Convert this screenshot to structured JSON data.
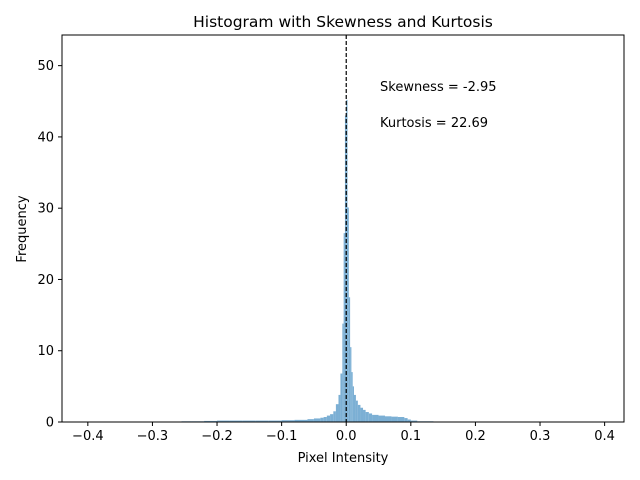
{
  "chart_data": {
    "type": "bar",
    "title": "Histogram with Skewness and Kurtosis",
    "xlabel": "Pixel Intensity",
    "ylabel": "Frequency",
    "xlim": [
      -0.44,
      0.43
    ],
    "ylim": [
      0,
      54.3
    ],
    "xticks": [
      -0.4,
      -0.3,
      -0.2,
      -0.1,
      0.0,
      0.1,
      0.2,
      0.3,
      0.4
    ],
    "xtick_labels": [
      "−0.4",
      "−0.3",
      "−0.2",
      "−0.1",
      "0.0",
      "0.1",
      "0.2",
      "0.3",
      "0.4"
    ],
    "yticks": [
      0,
      10,
      20,
      30,
      40,
      50
    ],
    "ytick_labels": [
      "0",
      "10",
      "20",
      "30",
      "40",
      "50"
    ],
    "grid": false,
    "bar_color": "#7bafd4",
    "bins": [
      [
        -0.255,
        -0.24,
        0.1
      ],
      [
        -0.24,
        -0.22,
        0.1
      ],
      [
        -0.22,
        -0.2,
        0.15
      ],
      [
        -0.2,
        -0.18,
        0.2
      ],
      [
        -0.18,
        -0.16,
        0.2
      ],
      [
        -0.16,
        -0.14,
        0.2
      ],
      [
        -0.14,
        -0.12,
        0.2
      ],
      [
        -0.12,
        -0.1,
        0.2
      ],
      [
        -0.1,
        -0.08,
        0.25
      ],
      [
        -0.08,
        -0.06,
        0.3
      ],
      [
        -0.06,
        -0.05,
        0.4
      ],
      [
        -0.05,
        -0.04,
        0.5
      ],
      [
        -0.04,
        -0.035,
        0.6
      ],
      [
        -0.035,
        -0.03,
        0.7
      ],
      [
        -0.03,
        -0.025,
        0.9
      ],
      [
        -0.025,
        -0.02,
        1.1
      ],
      [
        -0.02,
        -0.016,
        1.5
      ],
      [
        -0.016,
        -0.012,
        2.5
      ],
      [
        -0.012,
        -0.009,
        3.8
      ],
      [
        -0.009,
        -0.006,
        6.8
      ],
      [
        -0.006,
        -0.004,
        13.8
      ],
      [
        -0.004,
        -0.002,
        26.5
      ],
      [
        -0.002,
        0.0,
        43.0
      ],
      [
        0.0,
        0.002,
        45.2
      ],
      [
        0.002,
        0.004,
        30.1
      ],
      [
        0.004,
        0.006,
        17.5
      ],
      [
        0.006,
        0.008,
        10.5
      ],
      [
        0.008,
        0.01,
        7.0
      ],
      [
        0.01,
        0.012,
        5.0
      ],
      [
        0.012,
        0.015,
        3.8
      ],
      [
        0.015,
        0.018,
        3.0
      ],
      [
        0.018,
        0.022,
        2.4
      ],
      [
        0.022,
        0.026,
        2.0
      ],
      [
        0.026,
        0.03,
        1.7
      ],
      [
        0.03,
        0.035,
        1.4
      ],
      [
        0.035,
        0.04,
        1.2
      ],
      [
        0.04,
        0.05,
        1.0
      ],
      [
        0.05,
        0.06,
        0.9
      ],
      [
        0.06,
        0.07,
        0.8
      ],
      [
        0.07,
        0.08,
        0.75
      ],
      [
        0.08,
        0.09,
        0.7
      ],
      [
        0.09,
        0.095,
        0.55
      ],
      [
        0.095,
        0.1,
        0.35
      ],
      [
        0.1,
        0.11,
        0.2
      ],
      [
        0.11,
        0.135,
        0.1
      ]
    ],
    "vline": {
      "x": 0.0,
      "style": "dashed",
      "color": "#000000"
    },
    "annotations": [
      "Skewness = -2.95",
      "Kurtosis = 22.69"
    ]
  }
}
